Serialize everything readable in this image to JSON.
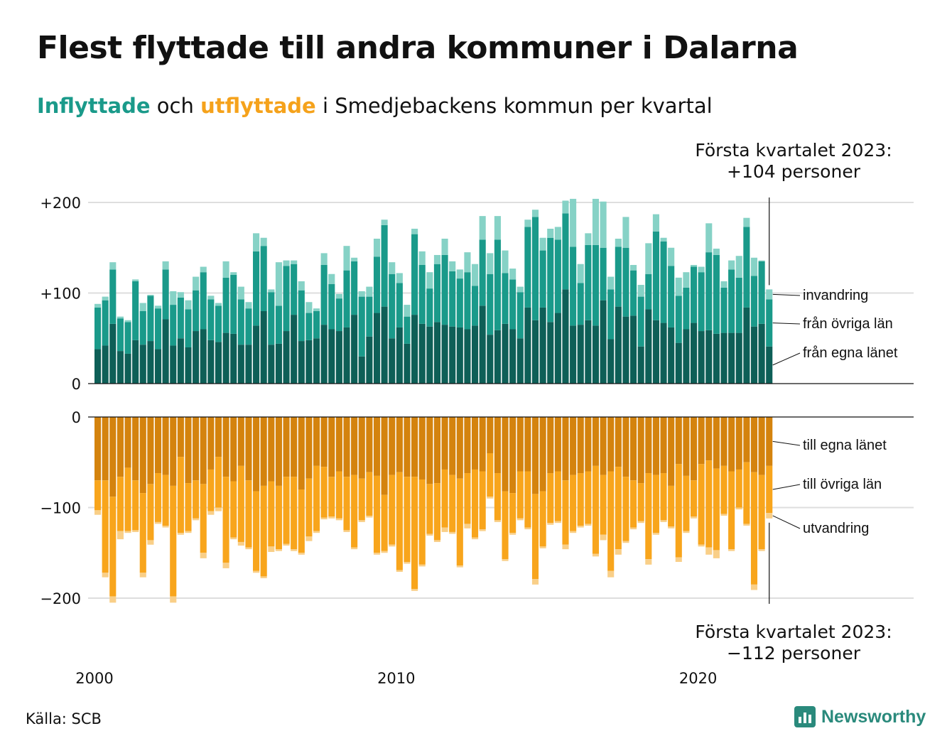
{
  "title": "Flest flyttade till andra kommuner i Dalarna",
  "subtitle": {
    "word_in": "Inflyttade",
    "word_and": "och",
    "word_out": "utflyttade",
    "rest": "i Smedjebackens kommun per kvartal"
  },
  "source": "Källa: SCB",
  "brand": {
    "name": "Newsworthy",
    "icon": "bar-chart-logo-icon"
  },
  "annotations": {
    "top_line1": "Första kvartalet 2023:",
    "top_line2": "+104 personer",
    "bottom_line1": "Första kvartalet 2023:",
    "bottom_line2": "−112 personer"
  },
  "chart_data": {
    "type": "bar",
    "stacked": true,
    "start_year": 2000,
    "quarters_per_year": 4,
    "x_ticks": [
      "2000",
      "2010",
      "2020"
    ],
    "grid": true,
    "panels": {
      "in": {
        "ylim": [
          0,
          220
        ],
        "y_ticks": [
          {
            "value": 0,
            "label": "0"
          },
          {
            "value": 100,
            "label": "+100"
          },
          {
            "value": 200,
            "label": "+200"
          }
        ],
        "series": [
          {
            "name": "från egna länet",
            "color": "#0e5f57",
            "values": [
              38,
              42,
              66,
              36,
              33,
              48,
              43,
              47,
              38,
              71,
              42,
              50,
              40,
              58,
              60,
              48,
              46,
              56,
              55,
              43,
              43,
              64,
              80,
              43,
              44,
              58,
              76,
              47,
              48,
              50,
              65,
              60,
              58,
              62,
              76,
              30,
              52,
              78,
              85,
              50,
              62,
              44,
              76,
              66,
              63,
              68,
              65,
              63,
              62,
              60,
              64,
              86,
              54,
              59,
              66,
              60,
              50,
              84,
              70,
              84,
              68,
              78,
              104,
              64,
              65,
              70,
              64,
              92,
              49,
              85,
              74,
              75,
              41,
              82,
              70,
              67,
              62,
              45,
              60,
              67,
              58,
              59,
              55,
              56,
              56,
              56,
              84,
              63,
              66,
              41
            ]
          },
          {
            "name": "från övriga län",
            "color": "#1a9a8a",
            "values": [
              46,
              50,
              60,
              36,
              35,
              65,
              37,
              50,
              45,
              55,
              45,
              45,
              42,
              45,
              63,
              45,
              40,
              61,
              65,
              50,
              40,
              82,
              72,
              58,
              42,
              72,
              56,
              56,
              30,
              30,
              66,
              50,
              36,
              63,
              59,
              66,
              44,
              62,
              90,
              71,
              49,
              30,
              89,
              65,
              42,
              64,
              77,
              61,
              54,
              63,
              44,
              73,
              67,
              100,
              56,
              55,
              51,
              89,
              114,
              63,
              93,
              81,
              84,
              87,
              46,
              83,
              89,
              58,
              55,
              66,
              76,
              50,
              55,
              39,
              98,
              90,
              68,
              52,
              46,
              62,
              65,
              86,
              87,
              50,
              70,
              61,
              89,
              56,
              69,
              52
            ]
          },
          {
            "name": "invandring",
            "color": "#86d2c6",
            "values": [
              4,
              4,
              8,
              2,
              2,
              2,
              9,
              1,
              3,
              9,
              15,
              6,
              10,
              15,
              6,
              4,
              3,
              18,
              3,
              14,
              7,
              20,
              9,
              3,
              48,
              6,
              4,
              10,
              12,
              3,
              13,
              11,
              5,
              27,
              4,
              6,
              11,
              20,
              6,
              13,
              11,
              13,
              6,
              15,
              18,
              10,
              18,
              11,
              10,
              22,
              24,
              26,
              23,
              26,
              25,
              12,
              6,
              8,
              8,
              14,
              10,
              14,
              14,
              53,
              21,
              13,
              51,
              51,
              14,
              9,
              34,
              6,
              13,
              34,
              19,
              4,
              20,
              20,
              17,
              2,
              6,
              32,
              7,
              7,
              10,
              24,
              10,
              20,
              1,
              11
            ]
          }
        ]
      },
      "out": {
        "ylim": [
          -220,
          0
        ],
        "y_ticks": [
          {
            "value": 0,
            "label": "0"
          },
          {
            "value": -100,
            "label": "−100"
          },
          {
            "value": -200,
            "label": "−200"
          }
        ],
        "series": [
          {
            "name": "till egna länet",
            "color": "#d4830e",
            "values": [
              -70,
              -70,
              -88,
              -66,
              -56,
              -70,
              -84,
              -74,
              -62,
              -64,
              -76,
              -44,
              -73,
              -70,
              -74,
              -58,
              -44,
              -66,
              -71,
              -54,
              -70,
              -82,
              -76,
              -71,
              -76,
              -66,
              -66,
              -80,
              -68,
              -54,
              -55,
              -66,
              -60,
              -66,
              -64,
              -68,
              -61,
              -65,
              -86,
              -64,
              -61,
              -66,
              -66,
              -69,
              -74,
              -73,
              -58,
              -64,
              -68,
              -62,
              -58,
              -60,
              -40,
              -62,
              -82,
              -84,
              -60,
              -60,
              -85,
              -82,
              -62,
              -60,
              -70,
              -64,
              -62,
              -60,
              -54,
              -64,
              -60,
              -55,
              -66,
              -70,
              -73,
              -62,
              -64,
              -62,
              -76,
              -52,
              -65,
              -70,
              -52,
              -48,
              -57,
              -54,
              -60,
              -58,
              -50,
              -61,
              -64,
              -54
            ]
          },
          {
            "name": "till övriga län",
            "color": "#f8a51c",
            "values": [
              -33,
              -102,
              -110,
              -60,
              -70,
              -55,
              -88,
              -62,
              -54,
              -56,
              -122,
              -84,
              -53,
              -42,
              -76,
              -46,
              -56,
              -95,
              -62,
              -84,
              -74,
              -88,
              -100,
              -72,
              -70,
              -74,
              -80,
              -70,
              -64,
              -72,
              -56,
              -44,
              -52,
              -59,
              -80,
              -46,
              -48,
              -85,
              -62,
              -77,
              -108,
              -94,
              -124,
              -94,
              -55,
              -63,
              -64,
              -63,
              -96,
              -56,
              -75,
              -64,
              -48,
              -52,
              -75,
              -44,
              -52,
              -62,
              -94,
              -61,
              -55,
              -55,
              -71,
              -62,
              -58,
              -58,
              -97,
              -66,
              -110,
              -91,
              -71,
              -52,
              -42,
              -95,
              -64,
              -52,
              -45,
              -103,
              -61,
              -40,
              -89,
              -96,
              -90,
              -53,
              -86,
              -42,
              -68,
              -124,
              -82,
              -52
            ]
          },
          {
            "name": "utvandring",
            "color": "#f9cf88",
            "values": [
              -5,
              -5,
              -7,
              -9,
              -2,
              -2,
              -5,
              -5,
              -2,
              -2,
              -7,
              -2,
              -2,
              -2,
              -6,
              -4,
              -4,
              -6,
              -2,
              -4,
              -2,
              -2,
              -2,
              -6,
              -2,
              -2,
              -2,
              -2,
              -5,
              -2,
              -2,
              -2,
              -2,
              -2,
              -2,
              -2,
              -2,
              -2,
              -2,
              -2,
              -2,
              -2,
              -2,
              -2,
              -2,
              -2,
              -5,
              -2,
              -2,
              -5,
              -2,
              -2,
              -2,
              -2,
              -2,
              -2,
              -2,
              -2,
              -6,
              -2,
              -2,
              -2,
              -5,
              -2,
              -2,
              -2,
              -3,
              -6,
              -7,
              -6,
              -2,
              -2,
              -2,
              -6,
              -2,
              -2,
              -2,
              -5,
              -2,
              -2,
              -2,
              -8,
              -9,
              -2,
              -2,
              -2,
              -2,
              -6,
              -2,
              -6
            ]
          }
        ]
      }
    }
  }
}
